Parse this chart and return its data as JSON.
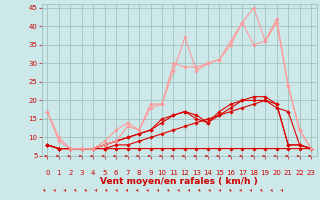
{
  "xlabel": "Vent moyen/en rafales ( km/h )",
  "bg_color": "#cce8e8",
  "grid_color": "#99bbbb",
  "xlim_min": -0.5,
  "xlim_max": 23.5,
  "ylim_min": 5,
  "ylim_max": 46,
  "yticks": [
    5,
    10,
    15,
    20,
    25,
    30,
    35,
    40,
    45
  ],
  "xticks": [
    0,
    1,
    2,
    3,
    4,
    5,
    6,
    7,
    8,
    9,
    10,
    11,
    12,
    13,
    14,
    15,
    16,
    17,
    18,
    19,
    20,
    21,
    22,
    23
  ],
  "lines": [
    {
      "x": [
        0,
        1,
        2,
        3,
        4,
        5,
        6,
        7,
        8,
        9,
        10,
        11,
        12,
        13,
        14,
        15,
        16,
        17,
        18,
        19,
        20,
        21,
        22,
        23
      ],
      "y": [
        8,
        7,
        7,
        7,
        7,
        7,
        7,
        7,
        7,
        7,
        7,
        7,
        7,
        7,
        7,
        7,
        7,
        7,
        7,
        7,
        7,
        7,
        7,
        7
      ],
      "color": "#dd0000",
      "lw": 0.8
    },
    {
      "x": [
        0,
        1,
        2,
        3,
        4,
        5,
        6,
        7,
        8,
        9,
        10,
        11,
        12,
        13,
        14,
        15,
        16,
        17,
        18,
        19,
        20,
        21,
        22,
        23
      ],
      "y": [
        8,
        7,
        7,
        7,
        7,
        7,
        8,
        8,
        9,
        10,
        11,
        12,
        13,
        14,
        15,
        16,
        17,
        18,
        19,
        20,
        19,
        8,
        8,
        7
      ],
      "color": "#dd0000",
      "lw": 0.8
    },
    {
      "x": [
        0,
        1,
        2,
        3,
        4,
        5,
        6,
        7,
        8,
        9,
        10,
        11,
        12,
        13,
        14,
        15,
        16,
        17,
        18,
        19,
        20,
        21,
        22,
        23
      ],
      "y": [
        8,
        7,
        7,
        7,
        7,
        8,
        9,
        10,
        11,
        12,
        14,
        16,
        17,
        16,
        14,
        16,
        18,
        20,
        21,
        21,
        19,
        8,
        8,
        7
      ],
      "color": "#dd0000",
      "lw": 0.8
    },
    {
      "x": [
        0,
        1,
        2,
        3,
        4,
        5,
        6,
        7,
        8,
        9,
        10,
        11,
        12,
        13,
        14,
        15,
        16,
        17,
        18,
        19,
        20,
        21,
        22,
        23
      ],
      "y": [
        8,
        7,
        7,
        7,
        7,
        8,
        9,
        10,
        11,
        12,
        15,
        16,
        17,
        15,
        14,
        17,
        19,
        20,
        20,
        20,
        18,
        17,
        8,
        7
      ],
      "color": "#dd0000",
      "lw": 0.8
    },
    {
      "x": [
        0,
        1,
        2,
        3,
        4,
        5,
        6,
        7,
        8,
        9,
        10,
        11,
        12,
        13,
        14,
        15,
        16,
        17,
        18,
        19,
        20,
        21,
        22,
        23
      ],
      "y": [
        17,
        9,
        7,
        7,
        7,
        8,
        9,
        13,
        12,
        18,
        19,
        30,
        29,
        29,
        30,
        31,
        35,
        41,
        35,
        36,
        42,
        24,
        12,
        7
      ],
      "color": "#ff9999",
      "lw": 0.8
    },
    {
      "x": [
        0,
        1,
        2,
        3,
        4,
        5,
        6,
        7,
        8,
        9,
        10,
        11,
        12,
        13,
        14,
        15,
        16,
        17,
        18,
        19,
        20,
        21,
        22,
        23
      ],
      "y": [
        17,
        10,
        7,
        7,
        7,
        9,
        12,
        14,
        12,
        19,
        19,
        28,
        37,
        28,
        30,
        31,
        36,
        41,
        45,
        36,
        41,
        24,
        12,
        7
      ],
      "color": "#ff9999",
      "lw": 0.8
    }
  ],
  "tick_fontsize": 5.0,
  "label_fontsize": 6.5,
  "tick_color": "#cc0000",
  "label_color": "#cc0000",
  "arrow_color": "#cc0000"
}
